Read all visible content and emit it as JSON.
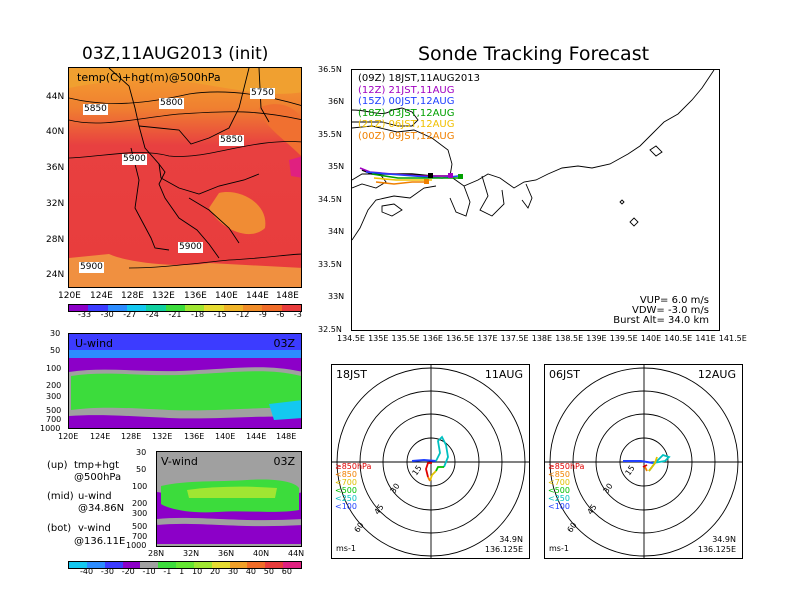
{
  "left": {
    "title": "03Z,11AUG2013 (init)",
    "map_label": "temp(C)+hgt(m)@500hPa",
    "lat_ticks": [
      "44N",
      "40N",
      "36N",
      "32N",
      "28N",
      "24N"
    ],
    "lon_ticks": [
      "120E",
      "124E",
      "128E",
      "132E",
      "136E",
      "140E",
      "144E",
      "148E"
    ],
    "contour_labels": [
      "5850",
      "5800",
      "5750",
      "5850",
      "5900",
      "5900",
      "5900"
    ],
    "temp_colorbar": [
      "-33",
      "-30",
      "-27",
      "-24",
      "-21",
      "-18",
      "-15",
      "-12",
      "-9",
      "-6",
      "-3"
    ],
    "uwind": {
      "label": "U-wind",
      "time": "03Z",
      "y_ticks": [
        "30",
        "50",
        "100",
        "200",
        "300",
        "500",
        "700",
        "1000"
      ],
      "x_ticks": [
        "120E",
        "124E",
        "128E",
        "132E",
        "136E",
        "140E",
        "144E",
        "148E"
      ]
    },
    "vwind": {
      "label": "V-wind",
      "time": "03Z",
      "y_ticks": [
        "30",
        "50",
        "100",
        "200",
        "300",
        "500",
        "700",
        "1000"
      ],
      "x_ticks": [
        "28N",
        "32N",
        "36N",
        "40N",
        "44N"
      ]
    },
    "notes": [
      {
        "k": "(up)",
        "v": "tmp+hgt"
      },
      {
        "k": "",
        "v": "@500hPa"
      },
      {
        "k": "(mid)",
        "v": "u-wind"
      },
      {
        "k": "",
        "v": "@34.86N"
      },
      {
        "k": "(bot)",
        "v": "v-wind"
      },
      {
        "k": "",
        "v": "@136.11E"
      }
    ],
    "wind_colorbar": [
      "-40",
      "-30",
      "-20",
      "-10",
      "-1",
      "1",
      "10",
      "20",
      "30",
      "40",
      "50",
      "60"
    ]
  },
  "right": {
    "title": "Sonde Tracking Forecast",
    "legend": [
      {
        "text": "(09Z)  18JST,11AUG2013",
        "color": "#000000"
      },
      {
        "text": "(12Z)  21JST,11AUG",
        "color": "#a000c0"
      },
      {
        "text": "(15Z)  00JST,12AUG",
        "color": "#2040ff"
      },
      {
        "text": "(18Z)  03JST,12AUG",
        "color": "#00a000"
      },
      {
        "text": "(21Z)  06JST,12AUG",
        "color": "#f0c000"
      },
      {
        "text": "(00Z)  09JST,12AUG",
        "color": "#f08000"
      }
    ],
    "lat_ticks": [
      "36.5N",
      "36N",
      "35.5N",
      "35N",
      "34.5N",
      "34N",
      "33.5N",
      "33N",
      "32.5N"
    ],
    "lon_ticks": [
      "134.5E",
      "135E",
      "135.5E",
      "136E",
      "136.5E",
      "137E",
      "137.5E",
      "138E",
      "138.5E",
      "139E",
      "139.5E",
      "140E",
      "140.5E",
      "141E",
      "141.5E"
    ],
    "params": [
      "VUP=  6.0  m/s",
      "VDW= -3.0  m/s",
      "Burst Alt=  34.0  km"
    ]
  },
  "hodo": [
    {
      "time": "18JST",
      "date": "11AUG",
      "rings": [
        "15",
        "30",
        "45",
        "60"
      ],
      "levels": [
        {
          "t": "≥850hPa",
          "c": "#e00000"
        },
        {
          "t": "<850",
          "c": "#f08000"
        },
        {
          "t": "<700",
          "c": "#e0c000"
        },
        {
          "t": "<500",
          "c": "#00c000"
        },
        {
          "t": "<250",
          "c": "#00c0c0"
        },
        {
          "t": "<100",
          "c": "#2040ff"
        }
      ],
      "unit": "ms-1",
      "lat": "34.9N",
      "lon": "136.125E"
    },
    {
      "time": "06JST",
      "date": "12AUG",
      "rings": [
        "15",
        "30",
        "45",
        "60"
      ],
      "levels": [
        {
          "t": "≥850hPa",
          "c": "#e00000"
        },
        {
          "t": "<850",
          "c": "#f08000"
        },
        {
          "t": "<700",
          "c": "#e0c000"
        },
        {
          "t": "<500",
          "c": "#00c000"
        },
        {
          "t": "<250",
          "c": "#00c0c0"
        },
        {
          "t": "<100",
          "c": "#2040ff"
        }
      ],
      "unit": "ms-1",
      "lat": "34.9N",
      "lon": "136.125E"
    }
  ]
}
